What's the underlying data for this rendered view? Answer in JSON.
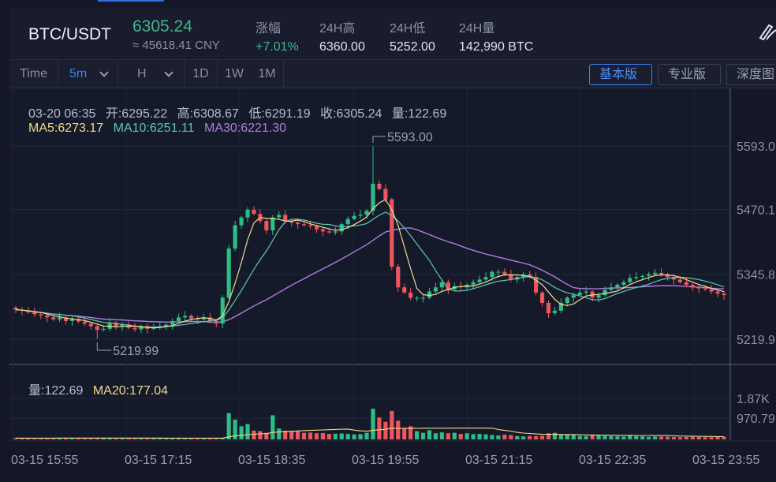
{
  "header": {
    "pair": "BTC/USDT",
    "price": "6305.24",
    "cny": "≈ 45618.41 CNY",
    "stats": [
      {
        "label": "涨幅",
        "value": "+7.01%",
        "up": true
      },
      {
        "label": "24H高",
        "value": "6360.00",
        "up": false
      },
      {
        "label": "24H低",
        "value": "5252.00",
        "up": false
      },
      {
        "label": "24H量",
        "value": "142,990 BTC",
        "up": false
      }
    ],
    "tool_icon": "draw-tool-icon"
  },
  "toolbar": {
    "time_label": "Time",
    "interval_selected": "5m",
    "hour_label": "H",
    "day_label": "1D",
    "week_label": "1W",
    "month_label": "1M",
    "versions": [
      "基本版",
      "专业版",
      "深度图"
    ],
    "active_version": "基本版"
  },
  "ohlc": {
    "date": "03-20 06:35",
    "open": "开:6295.22",
    "high": "高:6308.67",
    "low": "低:6291.19",
    "close": "收:6305.24",
    "volume": "量:122.69"
  },
  "ma": {
    "ma5": "MA5:6273.17",
    "ma10": "MA10:6251.11",
    "ma30": "MA30:6221.30"
  },
  "volume_info": {
    "vol": "量:122.69",
    "ma20": "MA20:177.04"
  },
  "colors": {
    "up": "#2ebd85",
    "down": "#f0555d",
    "ma5": "#f2d98c",
    "ma10": "#5bc7b4",
    "ma30": "#b07ce0"
  },
  "chart_data": {
    "type": "candlestick",
    "price_axis_labels": [
      "5593.0",
      "5470.1",
      "5345.8",
      "5219.9"
    ],
    "price_ticks": [
      5593.0,
      5470.1,
      5345.8,
      5219.9
    ],
    "volume_axis_labels": [
      "1.87K",
      "970.79"
    ],
    "volume_ticks": [
      1870,
      970.79
    ],
    "time_labels": [
      "03-15 15:55",
      "03-15 17:15",
      "03-15 18:35",
      "03-15 19:55",
      "03-15 21:15",
      "03-15 22:35",
      "03-15 23:55"
    ],
    "max_label": "5593.00",
    "min_label": "5219.99",
    "max_value": 5593.0,
    "min_value": 5219.99,
    "max_index": 57,
    "min_index": 13,
    "closes": [
      5277,
      5275,
      5272,
      5268,
      5266,
      5262,
      5258,
      5262,
      5255,
      5259,
      5254,
      5250,
      5245,
      5238,
      5240,
      5252,
      5245,
      5248,
      5242,
      5239,
      5245,
      5240,
      5243,
      5245,
      5248,
      5255,
      5262,
      5265,
      5260,
      5258,
      5262,
      5255,
      5250,
      5300,
      5395,
      5440,
      5455,
      5470,
      5462,
      5448,
      5430,
      5455,
      5460,
      5448,
      5445,
      5442,
      5440,
      5438,
      5432,
      5428,
      5426,
      5428,
      5442,
      5452,
      5458,
      5460,
      5468,
      5520,
      5510,
      5490,
      5360,
      5320,
      5310,
      5300,
      5300,
      5300,
      5312,
      5320,
      5330,
      5316,
      5322,
      5320,
      5325,
      5330,
      5335,
      5340,
      5350,
      5350,
      5345,
      5335,
      5340,
      5345,
      5340,
      5310,
      5290,
      5270,
      5275,
      5290,
      5300,
      5305,
      5310,
      5312,
      5300,
      5305,
      5315,
      5320,
      5325,
      5330,
      5338,
      5340,
      5342,
      5345,
      5348,
      5345,
      5340,
      5335,
      5330,
      5325,
      5320,
      5318,
      5316,
      5312,
      5308,
      5305
    ],
    "volumes": [
      60,
      55,
      58,
      60,
      62,
      60,
      58,
      70,
      60,
      58,
      62,
      60,
      58,
      65,
      60,
      55,
      58,
      60,
      55,
      58,
      60,
      55,
      60,
      58,
      55,
      60,
      58,
      60,
      55,
      62,
      60,
      64,
      60,
      70,
      1200,
      900,
      600,
      700,
      400,
      380,
      300,
      1100,
      500,
      400,
      380,
      360,
      300,
      310,
      280,
      290,
      250,
      260,
      270,
      250,
      230,
      240,
      300,
      1400,
      1000,
      800,
      1300,
      850,
      500,
      600,
      380,
      300,
      420,
      280,
      320,
      280,
      300,
      250,
      280,
      240,
      250,
      230,
      200,
      180,
      220,
      200,
      150,
      140,
      160,
      150,
      170,
      280,
      300,
      200,
      240,
      220,
      160,
      150,
      200,
      180,
      160,
      150,
      140,
      130,
      170,
      150,
      140,
      120,
      130,
      130,
      120,
      110,
      100,
      110,
      120,
      110,
      100,
      100,
      120,
      123
    ]
  }
}
